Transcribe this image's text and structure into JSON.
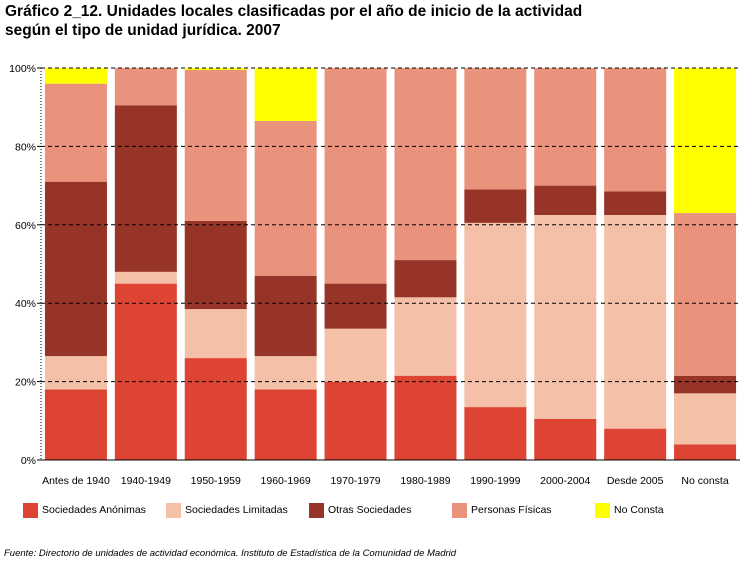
{
  "title": {
    "line1": "Gráfico 2_12. Unidades locales clasificadas por el año de inicio de la actividad",
    "line2": "según el tipo de unidad jurídica. 2007"
  },
  "source": "Fuente: Directorio de unidades de actividad económica. Instituto de Estadística de la Comunidad de Madrid",
  "chart_data": {
    "type": "bar",
    "stacked": true,
    "categories": [
      "Antes de 1940",
      "1940-1949",
      "1950-1959",
      "1960-1969",
      "1970-1979",
      "1980-1989",
      "1990-1999",
      "2000-2004",
      "Desde 2005",
      "No consta"
    ],
    "series": [
      {
        "name": "Sociedades Anónimas",
        "color": "#de4434",
        "values": [
          18,
          45,
          26,
          18,
          20,
          21.5,
          13.5,
          10.5,
          8,
          4
        ]
      },
      {
        "name": "Sociedades Limitadas",
        "color": "#f5c0a8",
        "values": [
          8.5,
          3,
          12.5,
          8.5,
          13.5,
          20,
          47,
          52,
          54.5,
          13
        ]
      },
      {
        "name": "Otras Sociedades",
        "color": "#973428",
        "values": [
          44.5,
          42.5,
          22.5,
          20.5,
          11.5,
          9.5,
          8.5,
          7.5,
          6,
          4.5
        ]
      },
      {
        "name": "Personas Físicas",
        "color": "#ea937c",
        "values": [
          25,
          9.5,
          38.5,
          39.5,
          55,
          49,
          31,
          30,
          31.5,
          41.5
        ]
      },
      {
        "name": "No Consta",
        "color": "#ffff00",
        "values": [
          4,
          0,
          0.5,
          13.5,
          0,
          0,
          0,
          0,
          0,
          37
        ]
      }
    ],
    "yticks": [
      "0%",
      "20%",
      "40%",
      "60%",
      "80%",
      "100%"
    ],
    "ylim": [
      0,
      100
    ],
    "grid": true,
    "legend_position": "bottom"
  }
}
